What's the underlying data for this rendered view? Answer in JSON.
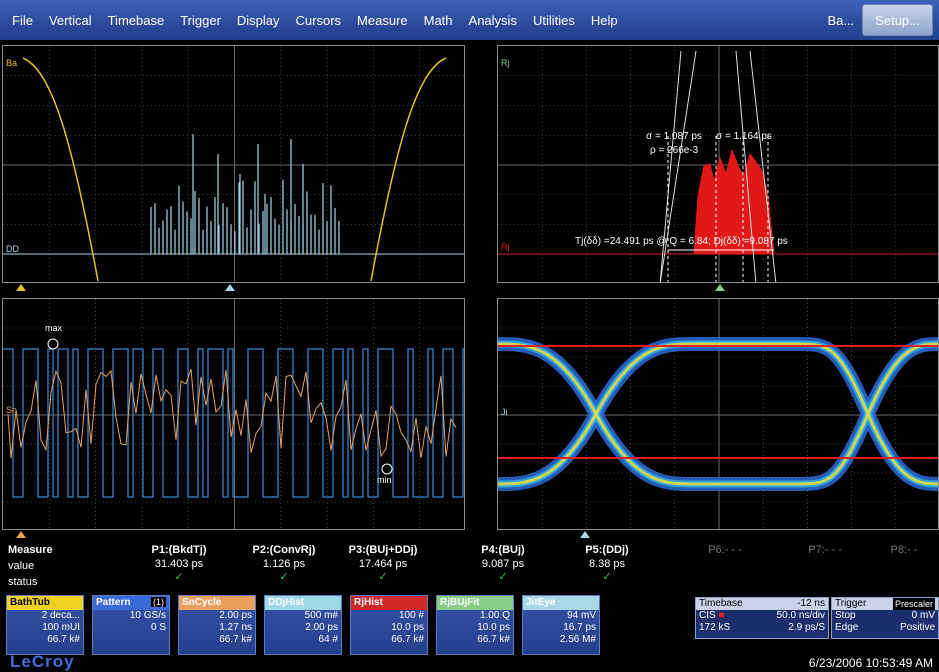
{
  "menu": {
    "items": [
      "File",
      "Vertical",
      "Timebase",
      "Trigger",
      "Display",
      "Cursors",
      "Measure",
      "Math",
      "Analysis",
      "Utilities",
      "Help"
    ],
    "right_label": "Ba...",
    "setup_label": "Setup..."
  },
  "panels": {
    "bathtub": {
      "trace_top": "Ba",
      "trace_bottom": "DD"
    },
    "rj": {
      "trace_top": "Rj",
      "trace_mid": "Rj",
      "sigma_left": "σ = 1.087 ps",
      "sigma_right": "σ = 1.164 ps",
      "rho": "ρ = 266e-3",
      "tj_text": "Tj(δδ) =24.491 ps @ Q = 6.84;  Dj(δδ) =9.087 ps"
    },
    "sncycle": {
      "trace": "Sn",
      "max_label": "max",
      "min_label": "min"
    },
    "eye": {
      "trace": "Ji"
    }
  },
  "measure": {
    "row_labels": [
      "Measure",
      "value",
      "status"
    ],
    "params": [
      {
        "name": "P1:(BkdTj)",
        "value": "31.403 ps",
        "status": "✓"
      },
      {
        "name": "P2:(ConvRj)",
        "value": "1.126 ps",
        "status": "✓"
      },
      {
        "name": "P3:(BUj+DDj)",
        "value": "17.464 ps",
        "status": "✓"
      },
      {
        "name": "P4:(BUj)",
        "value": "9.087 ps",
        "status": "✓"
      },
      {
        "name": "P5:(DDj)",
        "value": "8.38 ps",
        "status": "✓"
      },
      {
        "name": "P6:- - -",
        "value": "",
        "status": ""
      },
      {
        "name": "P7:- - -",
        "value": "",
        "status": ""
      },
      {
        "name": "P8:- -",
        "value": "",
        "status": ""
      }
    ]
  },
  "descriptors": [
    {
      "tag": "BathTub",
      "color": "#f0d020",
      "tagtext": "#000",
      "rows": [
        "2 deca...",
        "100 mUI",
        "66.7 k#"
      ]
    },
    {
      "tag": "Pattern",
      "badge": "(1)",
      "color": "#3a6ad8",
      "tagtext": "#fff",
      "rows": [
        "10 GS/s",
        "0 S",
        ""
      ]
    },
    {
      "tag": "SnCycle",
      "color": "#e8a060",
      "tagtext": "#fff",
      "rows": [
        "2.00 ps",
        "1.27 ns",
        "66.7 k#"
      ]
    },
    {
      "tag": "DDjHist",
      "color": "#9fd8e8",
      "tagtext": "#fff",
      "rows": [
        "500 m#",
        "2.00 ps",
        "64 #"
      ]
    },
    {
      "tag": "RjHist",
      "color": "#d02828",
      "tagtext": "#fff",
      "rows": [
        "100 #",
        "10.0 ps",
        "66.7 k#"
      ]
    },
    {
      "tag": "RjBUjFit",
      "color": "#88cc88",
      "tagtext": "#fff",
      "rows": [
        "1.00 Q",
        "10.0 ps",
        "66.7 k#"
      ]
    },
    {
      "tag": "JitEye",
      "color": "#a8d8e8",
      "tagtext": "#fff",
      "rows": [
        "94 mV",
        "16.7 ps",
        "2.56 M#"
      ]
    }
  ],
  "timebase": {
    "title": "Timebase",
    "offset": "-12 ns",
    "mode": "CIS",
    "div": "50.0 ns/div",
    "samples": "172 kS",
    "rate": "2.9 ps/S"
  },
  "trigger": {
    "title": "Trigger",
    "badge": "Prescaler",
    "row1_l": "Stop",
    "row1_r": "0 mV",
    "row2_l": "Edge",
    "row2_r": "Positive"
  },
  "brand": "LeCroy",
  "datetime": "6/23/2006 10:53:49 AM",
  "colors": {
    "bathtub": "#e8c020",
    "ddj": "#9fd8e8",
    "rj": "#e01818",
    "sncycle": "#e8a060",
    "pattern": "#3a8ad8",
    "grid": "#6a6a6a"
  }
}
